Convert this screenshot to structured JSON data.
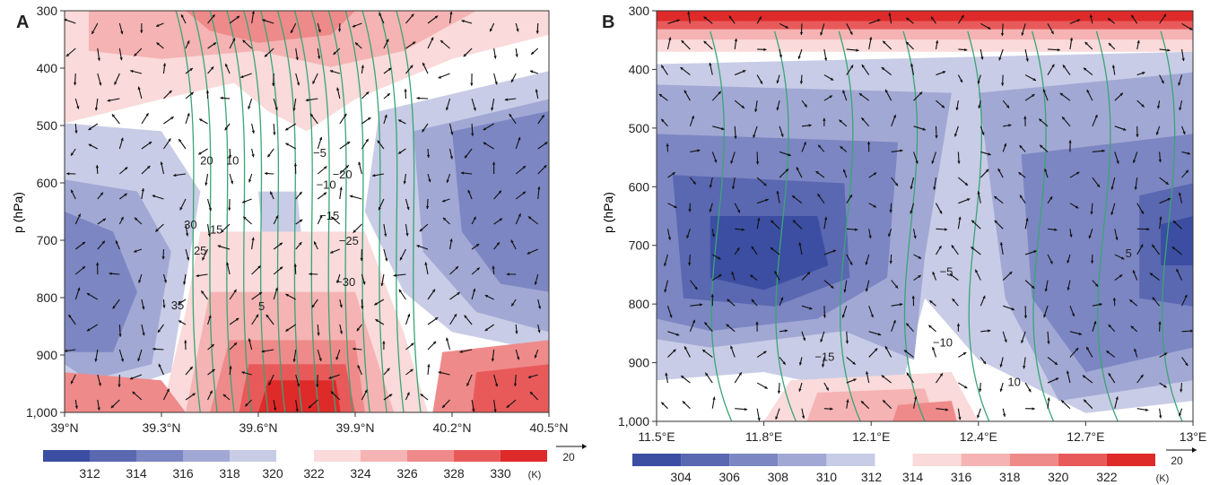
{
  "chart_data": [
    {
      "type": "heatmap",
      "panel_label": "A",
      "ylabel": "p (hPa)",
      "xlabel": "",
      "xticks": [
        "39°N",
        "39.3°N",
        "39.6°N",
        "39.9°N",
        "40.2°N",
        "40.5°N"
      ],
      "yticks": [
        "300",
        "400",
        "500",
        "600",
        "700",
        "800",
        "900",
        "1,000"
      ],
      "xlim": [
        39.0,
        40.5
      ],
      "ylim": [
        1000,
        300
      ],
      "contour_labels": [
        {
          "text": "20",
          "x": 39.44,
          "p": 568
        },
        {
          "text": "10",
          "x": 39.52,
          "p": 568
        },
        {
          "text": "15",
          "x": 39.47,
          "p": 688
        },
        {
          "text": "30",
          "x": 39.39,
          "p": 680
        },
        {
          "text": "25",
          "x": 39.42,
          "p": 725
        },
        {
          "text": "35",
          "x": 39.35,
          "p": 820
        },
        {
          "text": "5",
          "x": 39.61,
          "p": 822
        },
        {
          "text": "−5",
          "x": 39.79,
          "p": 555
        },
        {
          "text": "−10",
          "x": 39.81,
          "p": 610
        },
        {
          "text": "−20",
          "x": 39.86,
          "p": 592
        },
        {
          "text": "−15",
          "x": 39.82,
          "p": 664
        },
        {
          "text": "−25",
          "x": 39.88,
          "p": 708
        },
        {
          "text": "−30",
          "x": 39.87,
          "p": 780
        }
      ],
      "colorbar": {
        "cold": [
          "312",
          "314",
          "316",
          "318",
          "320"
        ],
        "warm": [
          "322",
          "324",
          "326",
          "328",
          "330"
        ],
        "unit": "(K)",
        "vector_key": "20"
      }
    },
    {
      "type": "heatmap",
      "panel_label": "B",
      "ylabel": "p (hPa)",
      "xlabel": "",
      "xticks": [
        "11.5°E",
        "11.8°E",
        "12.1°E",
        "12.4°E",
        "12.7°E",
        "13°E"
      ],
      "yticks": [
        "300",
        "400",
        "500",
        "600",
        "700",
        "800",
        "900",
        "1,000"
      ],
      "xlim": [
        11.5,
        13.0
      ],
      "ylim": [
        1000,
        300
      ],
      "contour_labels": [
        {
          "text": "5",
          "x": 12.82,
          "p": 720
        },
        {
          "text": "−5",
          "x": 12.31,
          "p": 752
        },
        {
          "text": "−10",
          "x": 12.3,
          "p": 872
        },
        {
          "text": "−15",
          "x": 11.97,
          "p": 897
        },
        {
          "text": "10",
          "x": 12.5,
          "p": 940
        }
      ],
      "colorbar": {
        "cold": [
          "304",
          "306",
          "308",
          "310",
          "312"
        ],
        "warm": [
          "314",
          "316",
          "318",
          "320",
          "322"
        ],
        "unit": "(K)",
        "vector_key": "20"
      }
    }
  ],
  "palette": {
    "cold": [
      "#3b4ea2",
      "#5a67b1",
      "#7c86c2",
      "#a2a8d4",
      "#c8cce6"
    ],
    "warm": [
      "#fadada",
      "#f5b3b3",
      "#ef8a8a",
      "#e85a5a",
      "#df2a2a"
    ],
    "contour": "#3aa575"
  }
}
